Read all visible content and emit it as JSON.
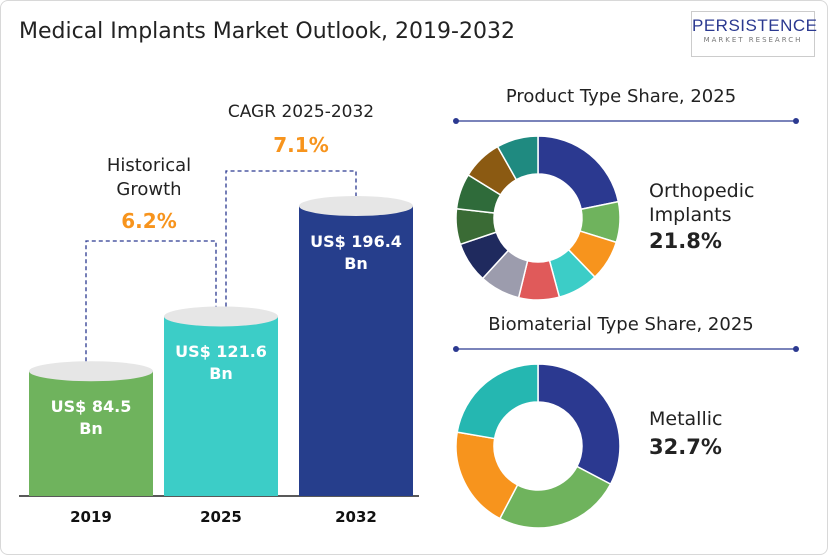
{
  "title": "Medical Implants Market Outlook, 2019-2032",
  "logo": {
    "name": "PERSISTENCE",
    "tagline": "MARKET RESEARCH"
  },
  "chart_data": [
    {
      "type": "bar",
      "categories": [
        "2019",
        "2025",
        "2032"
      ],
      "values": [
        84.5,
        121.6,
        196.4
      ],
      "value_labels": [
        "US$ 84.5 Bn",
        "US$ 121.6 Bn",
        "US$ 196.4 Bn"
      ],
      "colors": [
        "#6fb35d",
        "#3ccdc7",
        "#263e8c"
      ],
      "annotations": [
        {
          "text": "Historical Growth",
          "highlight": "6.2%"
        },
        {
          "text": "CAGR 2025-2032",
          "highlight": "7.1%"
        }
      ]
    },
    {
      "type": "donut",
      "title": "Product Type Share, 2025",
      "categories": [
        "Orthopedic Implants",
        null,
        null,
        null,
        null,
        null,
        null,
        null,
        null,
        null,
        null
      ],
      "values": [
        21.8,
        8,
        8,
        8,
        8,
        8,
        8,
        7,
        7,
        8,
        8.2
      ],
      "value_labels": [
        "21.8%",
        null,
        null,
        null,
        null,
        null,
        null,
        null,
        null,
        null,
        null
      ],
      "colors": [
        "#2b3990",
        "#6fb35d",
        "#f7941d",
        "#3ccdc7",
        "#e05a5a",
        "#9c9cad",
        "#1f2a5e",
        "#3a6b35",
        "#2f6b3a",
        "#8b5a12",
        "#1f8a80"
      ]
    },
    {
      "type": "donut",
      "title": "Biomaterial Type Share, 2025",
      "categories": [
        "Metallic",
        null,
        null,
        null
      ],
      "values": [
        32.7,
        25,
        20,
        22.3
      ],
      "value_labels": [
        "32.7%",
        null,
        null,
        null
      ],
      "colors": [
        "#2b3990",
        "#6fb35d",
        "#f7941d",
        "#25b7b1"
      ]
    }
  ]
}
